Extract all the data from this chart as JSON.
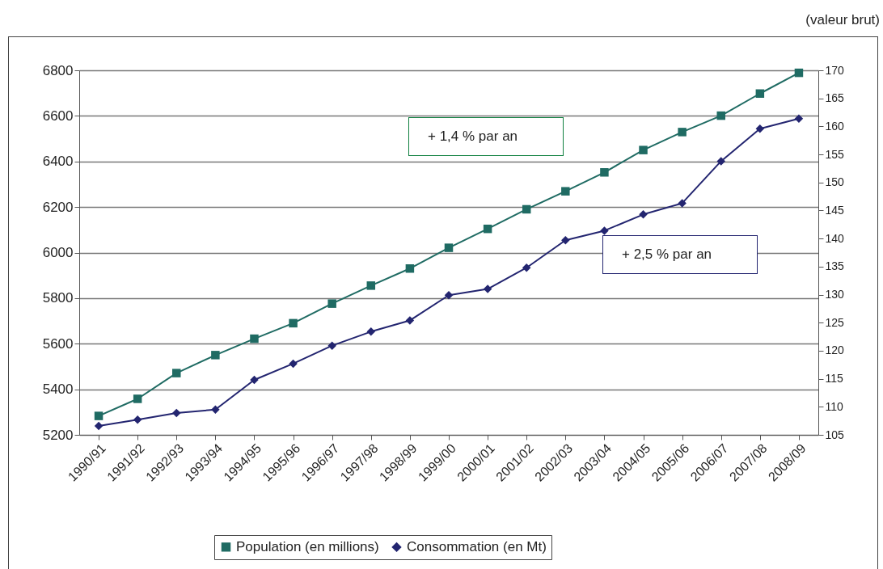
{
  "chart_data": {
    "type": "line",
    "categories": [
      "1990/91",
      "1991/92",
      "1992/93",
      "1993/94",
      "1994/95",
      "1995/96",
      "1996/97",
      "1997/98",
      "1998/99",
      "1999/00",
      "2000/01",
      "2001/02",
      "2002/03",
      "2003/04",
      "2004/05",
      "2005/06",
      "2006/07",
      "2007/08",
      "2008/09"
    ],
    "series": [
      {
        "name": "Population (en millions)",
        "color": "#1f6b63",
        "marker": "square",
        "values": [
          5283,
          5358,
          5471,
          5550,
          5622,
          5690,
          5776,
          5855,
          5930,
          6021,
          6104,
          6190,
          6269,
          6352,
          6450,
          6529,
          6601,
          6698,
          6789
        ]
      },
      {
        "name": "Consommation (en Mt)",
        "color": "#232570",
        "marker": "diamond",
        "axis": "y2",
        "values": [
          106.6,
          107.7,
          108.9,
          109.5,
          114.8,
          117.7,
          120.9,
          123.4,
          125.4,
          129.9,
          131.0,
          134.8,
          139.7,
          141.4,
          144.3,
          146.3,
          153.8,
          159.6,
          161.4
        ]
      }
    ],
    "ylim": [
      5200,
      6800
    ],
    "yticks": [
      5200,
      5400,
      5600,
      5800,
      6000,
      6200,
      6400,
      6600,
      6800
    ],
    "y2lim": [
      105,
      170
    ],
    "y2ticks": [
      105,
      110,
      115,
      120,
      125,
      130,
      135,
      140,
      145,
      150,
      155,
      160,
      165,
      170
    ],
    "grid": "y",
    "legend": "bottom",
    "annotations": [
      "+ 1,4 % par an",
      "+ 2,5 % par an",
      "(valeur brut)"
    ]
  }
}
